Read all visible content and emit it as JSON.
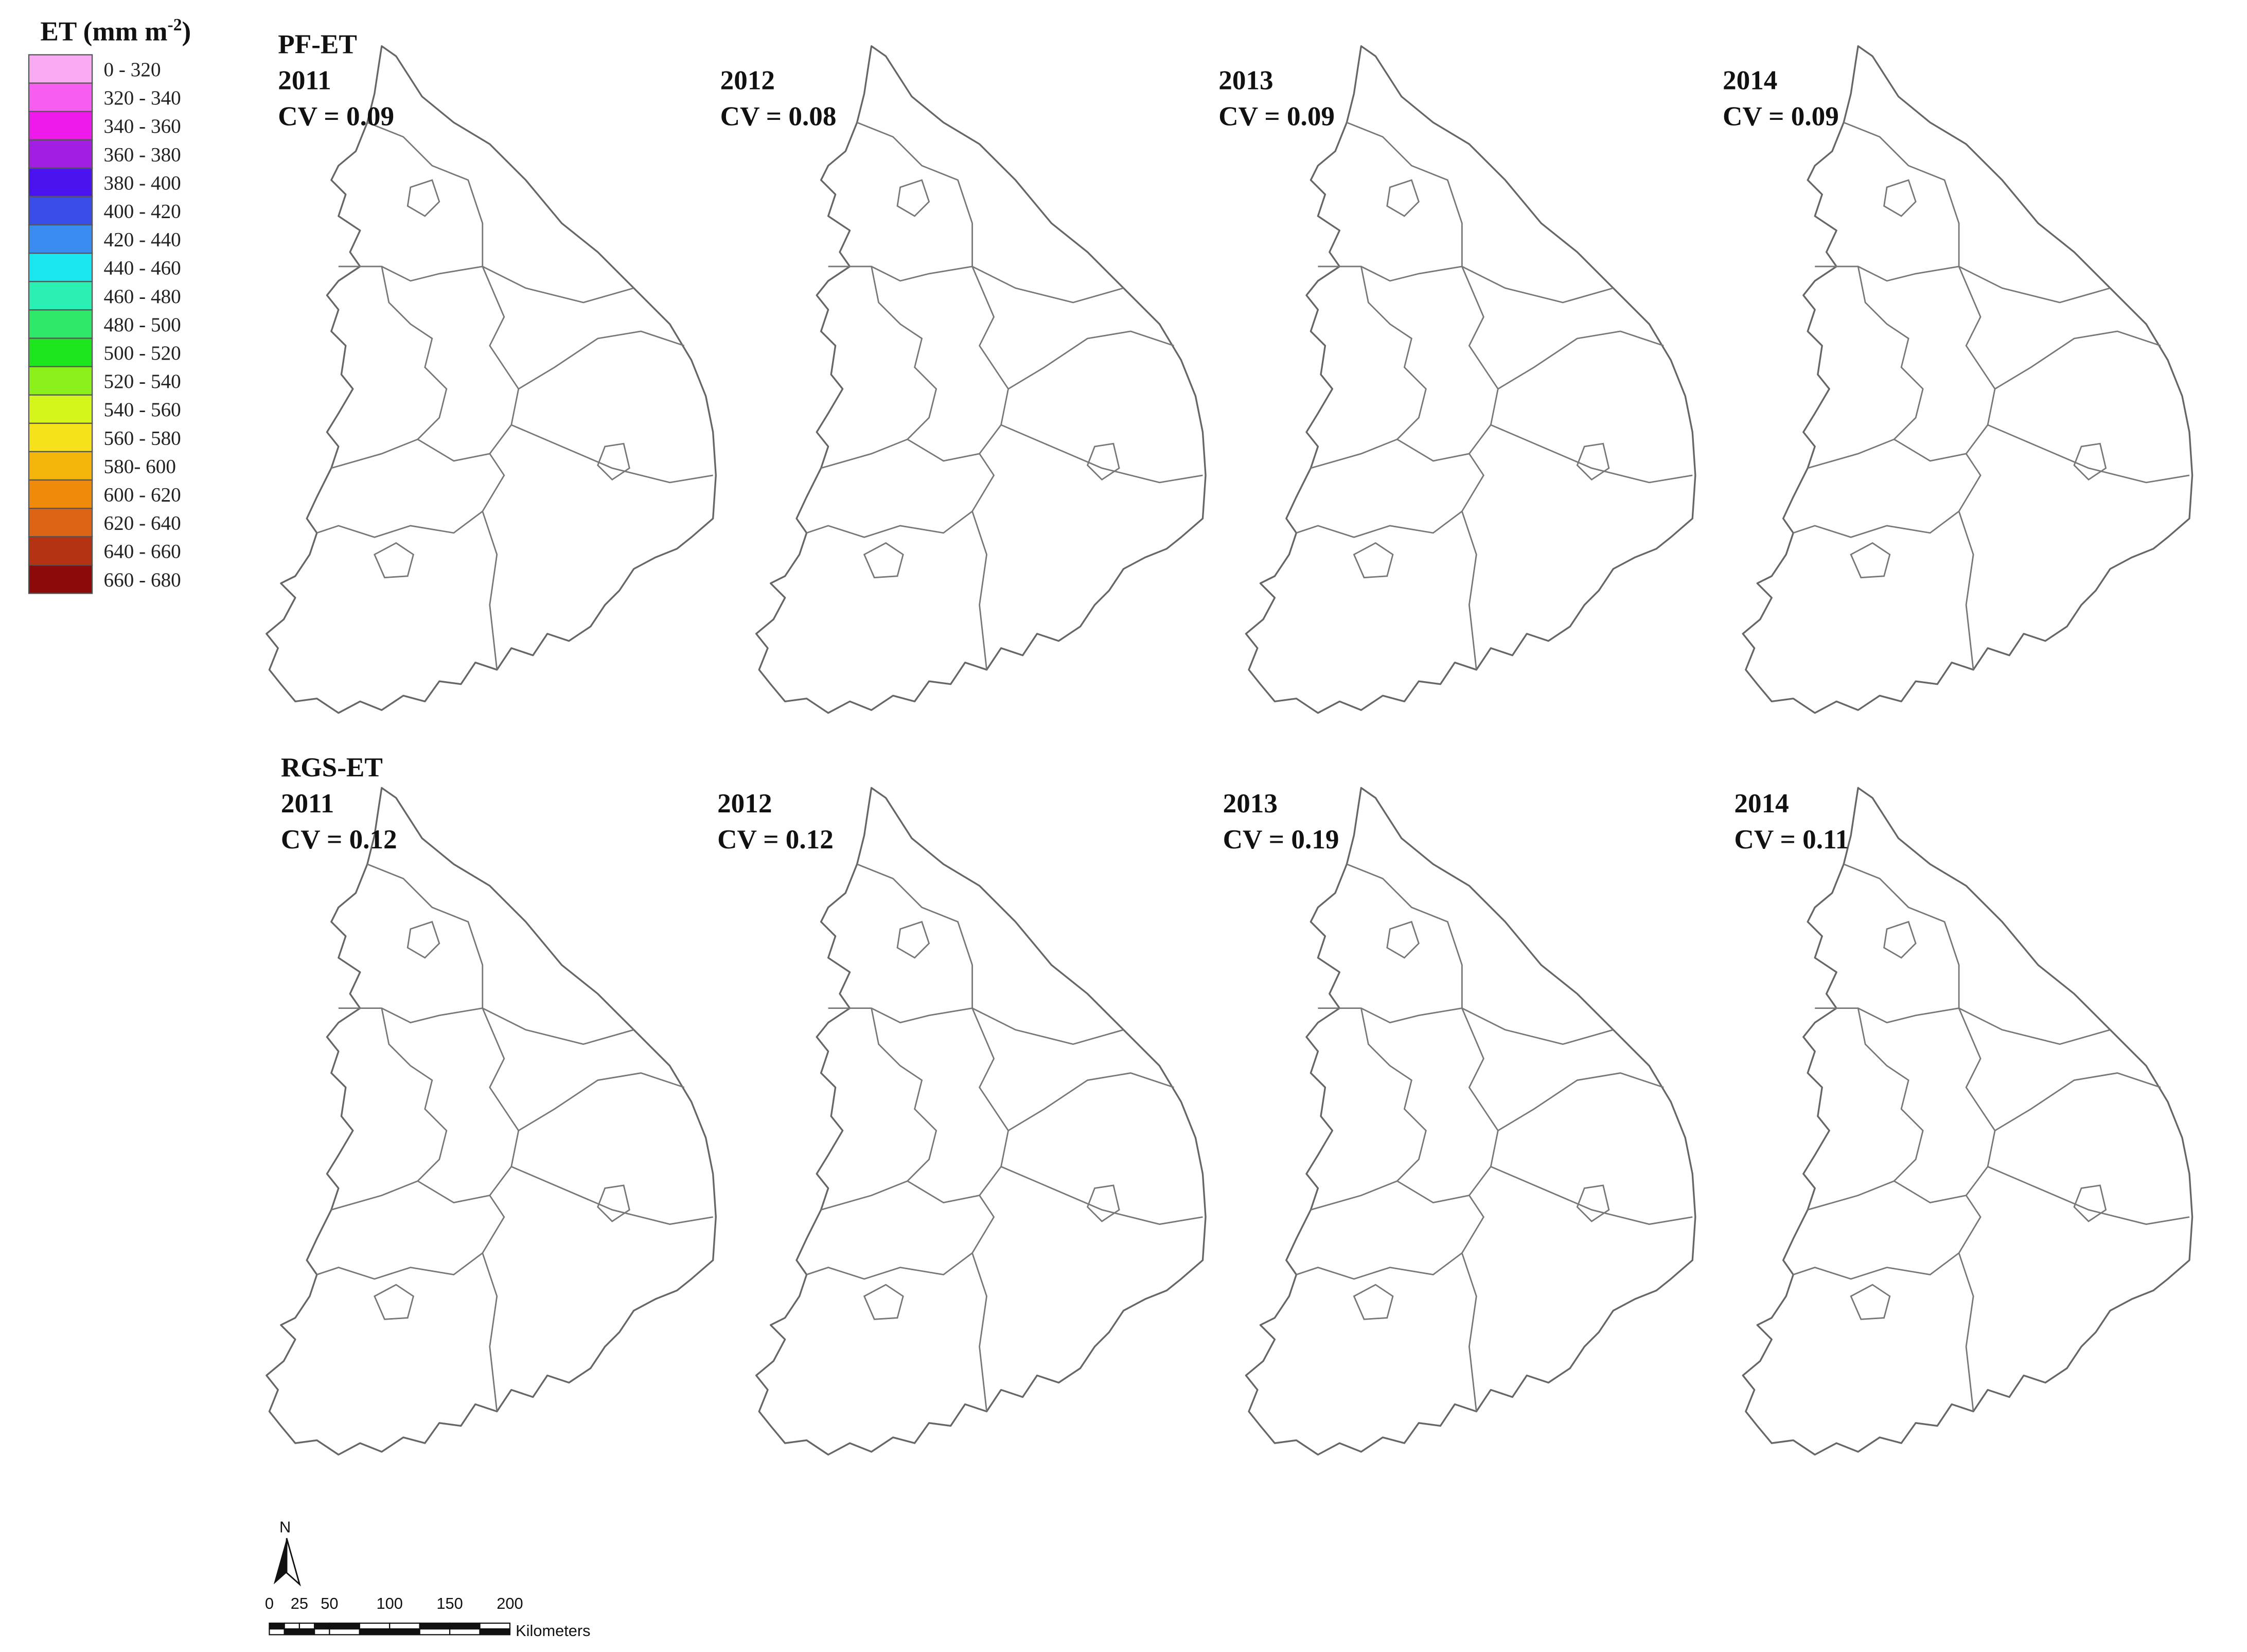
{
  "legend": {
    "title": {
      "text": "ET (mm m",
      "superscript": "-2",
      "closing": ")"
    },
    "entries": [
      {
        "label": "0  -  320",
        "color": "#f9aaf3"
      },
      {
        "label": "320  -  340",
        "color": "#f55ef0"
      },
      {
        "label": "340  -  360",
        "color": "#ee1aec"
      },
      {
        "label": "360  -  380",
        "color": "#a21ee0"
      },
      {
        "label": "380  -  400",
        "color": "#4b12f0"
      },
      {
        "label": "400  -  420",
        "color": "#3a4de8"
      },
      {
        "label": "420  -  440",
        "color": "#3a8cf0"
      },
      {
        "label": "440  -  460",
        "color": "#1ae6f0"
      },
      {
        "label": "460  -  480",
        "color": "#2af0b4"
      },
      {
        "label": "480  -  500",
        "color": "#2ee86a"
      },
      {
        "label": "500  -  520",
        "color": "#1ee61e"
      },
      {
        "label": "520  -  540",
        "color": "#8cf01a"
      },
      {
        "label": "540  -  560",
        "color": "#d6f51a"
      },
      {
        "label": "560  -  580",
        "color": "#f5e21a"
      },
      {
        "label": "580-  600",
        "color": "#f5b40a"
      },
      {
        "label": "600  -  620",
        "color": "#f08a0a"
      },
      {
        "label": "620  -  640",
        "color": "#dc6414"
      },
      {
        "label": "640  -  660",
        "color": "#b43212"
      },
      {
        "label": "660  -  680",
        "color": "#8c0a0a"
      }
    ]
  },
  "rows": [
    {
      "group": "PF-ET",
      "panels": [
        {
          "year": "2011",
          "cv": "CV = 0.09"
        },
        {
          "year": "2012",
          "cv": "CV = 0.08"
        },
        {
          "year": "2013",
          "cv": "CV = 0.09"
        },
        {
          "year": "2014",
          "cv": "CV = 0.09"
        }
      ]
    },
    {
      "group": "RGS-ET",
      "panels": [
        {
          "year": "2011",
          "cv": "CV = 0.12"
        },
        {
          "year": "2012",
          "cv": "CV = 0.12"
        },
        {
          "year": "2013",
          "cv": "CV = 0.19"
        },
        {
          "year": "2014",
          "cv": "CV = 0.11"
        }
      ]
    }
  ],
  "scale": {
    "north": "N",
    "ticks": [
      0,
      25,
      50,
      100,
      150,
      200
    ],
    "unit": "Kilometers"
  }
}
